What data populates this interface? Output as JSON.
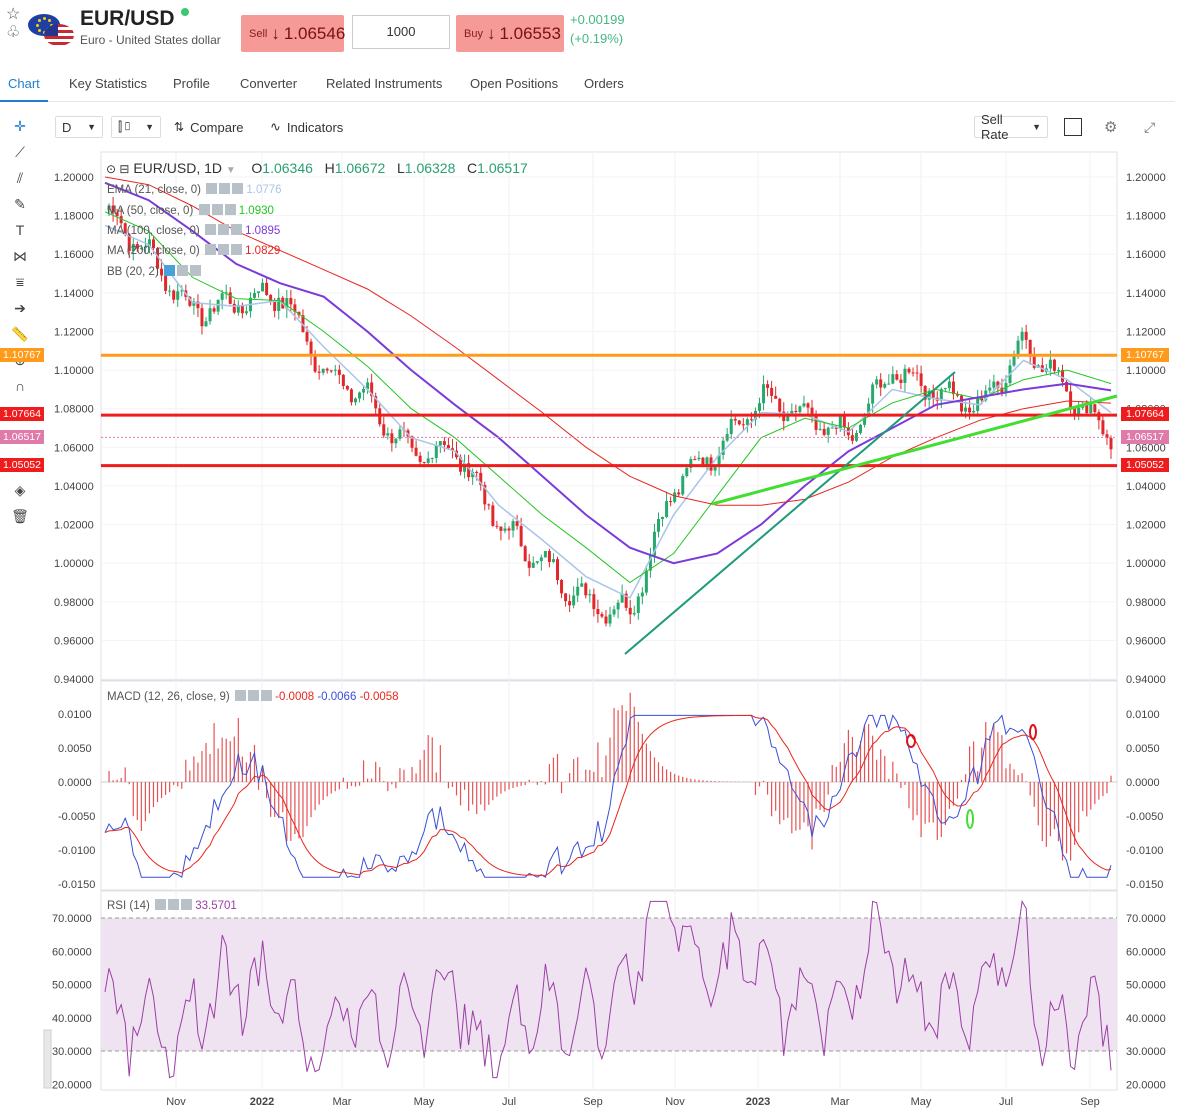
{
  "header": {
    "symbol": "EUR/USD",
    "name": "Euro - United States dollar",
    "sell_label": "Sell",
    "sell_price": "1.06546",
    "amount": "1000",
    "buy_label": "Buy",
    "buy_price": "1.06553",
    "change_abs": "+0.00199",
    "change_pct": "(+0.19%)"
  },
  "tabs": [
    "Chart",
    "Key Statistics",
    "Profile",
    "Converter",
    "Related Instruments",
    "Open Positions",
    "Orders"
  ],
  "toolbar": {
    "interval": "D",
    "compare": "Compare",
    "indicators": "Indicators",
    "rate_type": "Sell Rate"
  },
  "ohlc": {
    "symbol_interval": "EUR/USD, 1D",
    "o_label": "O",
    "o": "1.06346",
    "h_label": "H",
    "h": "1.06672",
    "l_label": "L",
    "l": "1.06328",
    "c_label": "C",
    "c": "1.06517"
  },
  "indicators": [
    {
      "label": "EMA (21, close, 0)",
      "value": "1.0776",
      "color": "#a9c5e8"
    },
    {
      "label": "MA (50, close, 0)",
      "value": "1.0930",
      "color": "#22c722"
    },
    {
      "label": "MA (100, close, 0)",
      "value": "1.0895",
      "color": "#7b3ad9"
    },
    {
      "label": "MA (200, close, 0)",
      "value": "1.0829",
      "color": "#e8261f"
    },
    {
      "label": "BB (20, 2)",
      "value": "",
      "color": "#555555"
    }
  ],
  "macd": {
    "label": "MACD (12, 26, close, 9)",
    "v1": "-0.0008",
    "v2": "-0.0066",
    "v3": "-0.0058"
  },
  "rsi": {
    "label": "RSI (14)",
    "value": "33.5701"
  },
  "price_axis": [
    "1.20000",
    "1.18000",
    "1.16000",
    "1.14000",
    "1.12000",
    "1.10000",
    "1.08000",
    "1.06000",
    "1.04000",
    "1.02000",
    "1.00000",
    "0.98000",
    "0.96000",
    "0.94000"
  ],
  "macd_axis": [
    "0.0100",
    "0.0050",
    "0.0000",
    "-0.0050",
    "-0.0100",
    "-0.0150"
  ],
  "rsi_axis": [
    "70.0000",
    "60.0000",
    "50.0000",
    "40.0000",
    "30.0000",
    "20.0000"
  ],
  "time_axis": [
    "Nov",
    "2022",
    "Mar",
    "May",
    "Jul",
    "Sep",
    "Nov",
    "2023",
    "Mar",
    "May",
    "Jul",
    "Sep"
  ],
  "levels": [
    {
      "price": 1.10767,
      "label": "1.10767",
      "color": "#ff9a1a"
    },
    {
      "price": 1.07664,
      "label": "1.07664",
      "color": "#ee1c1c"
    },
    {
      "price": 1.06517,
      "label": "1.06517",
      "color": "#e07aa9"
    },
    {
      "price": 1.05052,
      "label": "1.05052",
      "color": "#ee1c1c"
    }
  ],
  "chart_data": {
    "type": "line",
    "title": "EUR/USD, 1D",
    "x": [
      "2021-10",
      "2021-11",
      "2021-12",
      "2022-01",
      "2022-02",
      "2022-03",
      "2022-04",
      "2022-05",
      "2022-06",
      "2022-07",
      "2022-08",
      "2022-09",
      "2022-10",
      "2022-11",
      "2022-12",
      "2023-01",
      "2023-02",
      "2023-03",
      "2023-04",
      "2023-05",
      "2023-06",
      "2023-07",
      "2023-08",
      "2023-09"
    ],
    "series": [
      {
        "name": "EUR/USD",
        "values": [
          1.183,
          1.16,
          1.13,
          1.135,
          1.14,
          1.1,
          1.085,
          1.055,
          1.06,
          1.02,
          1.0,
          0.98,
          0.975,
          1.04,
          1.06,
          1.085,
          1.075,
          1.065,
          1.1,
          1.09,
          1.08,
          1.115,
          1.09,
          1.065
        ]
      },
      {
        "name": "EMA (21, close, 0)",
        "values": [
          1.175,
          1.165,
          1.135,
          1.133,
          1.136,
          1.112,
          1.09,
          1.065,
          1.058,
          1.03,
          1.012,
          0.993,
          0.982,
          1.025,
          1.055,
          1.078,
          1.077,
          1.068,
          1.09,
          1.085,
          1.082,
          1.105,
          1.095,
          1.078
        ]
      },
      {
        "name": "MA (50, close, 0)",
        "values": [
          1.182,
          1.172,
          1.148,
          1.137,
          1.136,
          1.12,
          1.102,
          1.08,
          1.065,
          1.045,
          1.025,
          1.008,
          0.99,
          1.005,
          1.035,
          1.065,
          1.075,
          1.07,
          1.083,
          1.09,
          1.085,
          1.095,
          1.1,
          1.093
        ]
      },
      {
        "name": "MA (100, close, 0)",
        "values": [
          1.197,
          1.188,
          1.172,
          1.155,
          1.145,
          1.138,
          1.12,
          1.1,
          1.082,
          1.065,
          1.045,
          1.025,
          1.008,
          1.0,
          1.005,
          1.02,
          1.04,
          1.058,
          1.07,
          1.082,
          1.086,
          1.09,
          1.093,
          1.0895
        ]
      },
      {
        "name": "MA (200, close, 0)",
        "values": [
          1.2,
          1.196,
          1.185,
          1.172,
          1.162,
          1.152,
          1.142,
          1.128,
          1.112,
          1.095,
          1.078,
          1.06,
          1.045,
          1.035,
          1.03,
          1.03,
          1.033,
          1.042,
          1.055,
          1.065,
          1.074,
          1.08,
          1.084,
          1.0829
        ]
      }
    ],
    "ylim": [
      0.94,
      1.205
    ],
    "grid": true,
    "xlabel": "",
    "ylabel": ""
  }
}
